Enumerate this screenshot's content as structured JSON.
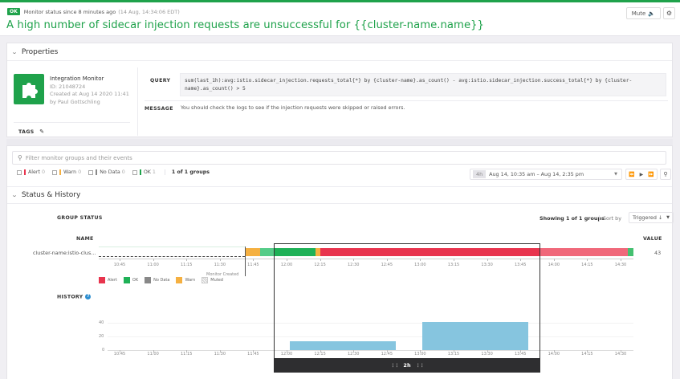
{
  "header": {
    "status_badge": "OK",
    "status_text": "Monitor status since 8 minutes ago",
    "status_timestamp": "(14 Aug, 14:34:06 EDT)",
    "title": "A high number of sidecar injection requests are unsuccessful for {{cluster-name.name}}",
    "mute_label": "Mute",
    "mute_icon": "speaker-icon",
    "settings_icon": "gear-icon",
    "accent_color": "#1fa24b"
  },
  "properties": {
    "section_title": "Properties",
    "integration": {
      "icon": "puzzle-icon",
      "name": "Integration Monitor",
      "id": "ID: 21048724",
      "created": "Created at Aug 14 2020 11:41",
      "author": "by Paul Gottschling"
    },
    "tags_label": "TAGS",
    "query_label": "QUERY",
    "query_line1": "sum(last_1h):avg:istio.sidecar_injection.requests_total{*} by {cluster-name}.as_count() - avg:istio.sidecar_injection.success_total{*} by {cluster-",
    "query_line2": "name}.as_count() > 5",
    "message_label": "MESSAGE",
    "message": "You should check the logs to see if the injection requests were skipped or raised errors."
  },
  "filters": {
    "search_placeholder": "Filter monitor groups and their events",
    "chips": [
      {
        "label": "Alert",
        "count": "0",
        "color": "#e8344e"
      },
      {
        "label": "Warn",
        "count": "0",
        "color": "#f5b041"
      },
      {
        "label": "No Data",
        "count": "0",
        "color": "#888888"
      },
      {
        "label": "OK",
        "count": "1",
        "color": "#1fa24b"
      }
    ],
    "groups_count": "1 of 1 groups",
    "time_duration": "4h",
    "time_range": "Aug 14, 10:35 am – Aug 14, 2:35 pm"
  },
  "status_history": {
    "section_title": "Status & History",
    "group_status_label": "GROUP STATUS",
    "showing": "Showing 1 of 1 groups",
    "sort_by_label": "Sort by",
    "sort_value": "Triggered ↓",
    "name_header": "NAME",
    "value_header": "VALUE",
    "group": {
      "name": "cluster-name:istio-clus...",
      "value": "43"
    },
    "time_ticks": [
      "10:45",
      "11:00",
      "11:15",
      "11:30",
      "11:45",
      "12:00",
      "12:15",
      "12:30",
      "12:45",
      "13:00",
      "13:15",
      "13:30",
      "13:45",
      "14:00",
      "14:15",
      "14:30"
    ],
    "monitor_created_label": "Monitor Created",
    "legend": [
      {
        "label": "Alert",
        "color": "#e8344e"
      },
      {
        "label": "OK",
        "color": "#1fa24b"
      },
      {
        "label": "No Data",
        "color": "#888888"
      },
      {
        "label": "Warn",
        "color": "#f5b041"
      },
      {
        "label": "Muted",
        "color": "#cccccc"
      }
    ],
    "history_label": "HISTORY",
    "y_ticks": [
      "40",
      "20",
      "0"
    ],
    "brush_label": "2h"
  },
  "chart_data": {
    "type": "bar",
    "title": "History",
    "x": [
      "12:00-12:45",
      "13:00-13:45"
    ],
    "values": [
      13,
      42
    ],
    "ylim": [
      0,
      50
    ],
    "ylabel": "",
    "xlabel": "",
    "color": "#86c5df"
  }
}
